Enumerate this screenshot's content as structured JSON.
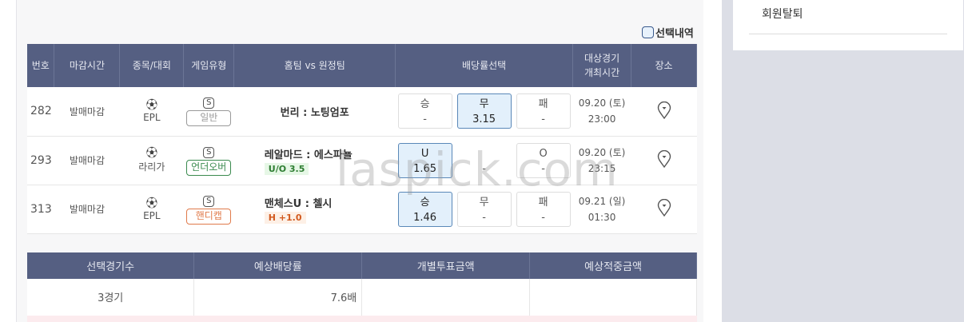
{
  "sidebar": {
    "withdraw": "회원탈퇴"
  },
  "selection_toggle": "선택내역",
  "table": {
    "headers": [
      "번호",
      "마감시간",
      "종목/대회",
      "게임유형",
      "홈팀 vs 원정팀",
      "배당률선택",
      "대상경기\n개최시간",
      "장소"
    ],
    "rows": [
      {
        "num": "282",
        "status": "발매마감",
        "sport_icon": "soccer-ball-icon",
        "league": "EPL",
        "s": "S",
        "type": "일반",
        "type_color": "#999999",
        "teams": "번리 : 노팅엄포",
        "tag": "",
        "opts": [
          {
            "label": "승",
            "odd": "-",
            "selected": false
          },
          {
            "label": "무",
            "odd": "3.15",
            "selected": true
          },
          {
            "label": "패",
            "odd": "-",
            "selected": false
          }
        ],
        "date": "09.20 (토)",
        "time": "23:00"
      },
      {
        "num": "293",
        "status": "발매마감",
        "sport_icon": "soccer-ball-icon",
        "league": "라리가",
        "s": "S",
        "type": "언더오버",
        "type_color": "#3a8a4e",
        "teams": "레알마드 : 에스파뇰",
        "tag": "U/O 3.5",
        "tag_color": "#2e7d32",
        "tag_bg": "#e6f7e6",
        "opts": [
          {
            "label": "U",
            "odd": "1.65",
            "selected": true
          },
          {
            "label": "",
            "odd": "-",
            "selected": false
          },
          {
            "label": "O",
            "odd": "-",
            "selected": false
          }
        ],
        "date": "09.20 (토)",
        "time": "23:15"
      },
      {
        "num": "313",
        "status": "발매마감",
        "sport_icon": "soccer-ball-icon",
        "league": "EPL",
        "s": "S",
        "type": "핸디캡",
        "type_color": "#e07a4a",
        "teams": "맨체스U : 첼시",
        "tag": "H +1.0",
        "tag_color": "#d2591e",
        "tag_bg": "#fdf0e6",
        "opts": [
          {
            "label": "승",
            "odd": "1.46",
            "selected": true
          },
          {
            "label": "무",
            "odd": "-",
            "selected": false
          },
          {
            "label": "패",
            "odd": "-",
            "selected": false
          }
        ],
        "date": "09.21 (일)",
        "time": "01:30"
      }
    ]
  },
  "summary": {
    "headers": [
      "선택경기수",
      "예상배당률",
      "개별투표금액",
      "예상적중금액"
    ],
    "values": [
      "3경기",
      "7.6배",
      "",
      ""
    ]
  },
  "watermark": "laspick.com"
}
